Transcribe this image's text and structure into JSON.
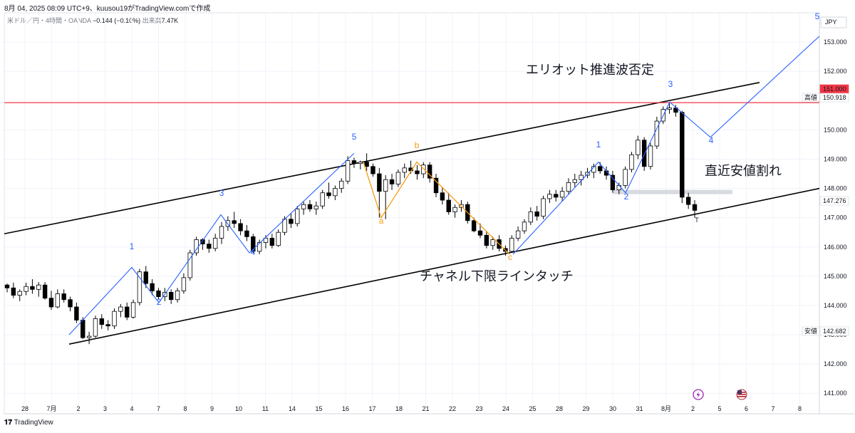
{
  "header": {
    "caption": "8月 04, 2025 08:09 UTC+9、kuusou19がTradingView.comで作成"
  },
  "symbol": {
    "name": "米ドル／円・4時間・OANDA",
    "change": "−0.144 (−0.10%)",
    "volume_label": "出来高",
    "volume": "7.47K"
  },
  "footer": {
    "brand": "TradingView"
  },
  "colors": {
    "up": "#ffffff",
    "down": "#000000",
    "wave_blue": "#2962ff",
    "wave_orange": "#f59b12",
    "resistance_line": "#f23645",
    "channel": "#000000"
  },
  "icons": [
    "tradingview-logo-icon",
    "lightning-icon",
    "us-flag-icon"
  ],
  "chart_data": {
    "type": "candlestick",
    "currency": "JPY",
    "x_ticks": [
      "28",
      "7月",
      "2",
      "3",
      "4",
      "7",
      "8",
      "9",
      "10",
      "11",
      "14",
      "15",
      "16",
      "17",
      "18",
      "21",
      "22",
      "23",
      "24",
      "25",
      "28",
      "29",
      "30",
      "31",
      "8月",
      "2",
      "5",
      "6",
      "7",
      "8"
    ],
    "y_ticks": [
      "141.000",
      "142.000",
      "143.000",
      "144.000",
      "145.000",
      "146.000",
      "147.000",
      "148.000",
      "149.000",
      "150.000",
      "152.000",
      "153.000"
    ],
    "ylim": [
      140.3,
      154.0
    ],
    "price_labels": [
      {
        "label": "",
        "value": "151.000",
        "color": "#f23645"
      },
      {
        "label": "高値",
        "value": "150.918",
        "color": "#131722"
      },
      {
        "label": "",
        "value": "147.276",
        "color": "#131722"
      },
      {
        "label": "安値",
        "value": "142.682",
        "color": "#131722"
      }
    ],
    "horizontal_line": 150.93,
    "channel_upper": [
      {
        "i": 0,
        "v": 146.45
      },
      {
        "i": 94,
        "v": 151.62
      }
    ],
    "channel_lower": [
      {
        "i": 5,
        "v": 142.68
      },
      {
        "i": 118,
        "v": 148.0
      }
    ],
    "support_zone": [
      147.82,
      147.95
    ],
    "candles": [
      [
        144.7,
        144.75,
        144.45,
        144.6
      ],
      [
        144.6,
        144.78,
        144.25,
        144.35
      ],
      [
        144.35,
        144.55,
        144.15,
        144.48
      ],
      [
        144.48,
        144.78,
        144.35,
        144.65
      ],
      [
        144.65,
        144.9,
        144.4,
        144.55
      ],
      [
        144.55,
        144.8,
        144.3,
        144.7
      ],
      [
        144.7,
        144.8,
        144.2,
        144.25
      ],
      [
        144.25,
        144.5,
        143.85,
        143.95
      ],
      [
        143.95,
        144.55,
        143.9,
        144.4
      ],
      [
        144.4,
        144.55,
        144.1,
        144.2
      ],
      [
        144.2,
        144.3,
        143.8,
        143.95
      ],
      [
        143.95,
        144.1,
        143.4,
        143.5
      ],
      [
        143.5,
        143.6,
        142.85,
        142.9
      ],
      [
        142.9,
        143.1,
        142.68,
        142.95
      ],
      [
        142.95,
        143.65,
        142.9,
        143.55
      ],
      [
        143.55,
        143.7,
        143.2,
        143.35
      ],
      [
        143.35,
        143.5,
        143.15,
        143.3
      ],
      [
        143.3,
        143.9,
        143.2,
        143.8
      ],
      [
        143.8,
        144.05,
        143.6,
        143.95
      ],
      [
        143.95,
        144.1,
        143.5,
        143.6
      ],
      [
        143.6,
        144.2,
        143.55,
        144.1
      ],
      [
        144.1,
        145.25,
        144.0,
        145.15
      ],
      [
        145.15,
        145.35,
        144.6,
        144.75
      ],
      [
        144.75,
        144.9,
        144.35,
        144.5
      ],
      [
        144.5,
        144.6,
        144.2,
        144.3
      ],
      [
        144.3,
        144.6,
        144.15,
        144.45
      ],
      [
        144.45,
        144.55,
        144.05,
        144.2
      ],
      [
        144.2,
        144.6,
        144.1,
        144.5
      ],
      [
        144.5,
        145.1,
        144.4,
        144.95
      ],
      [
        144.95,
        145.9,
        144.85,
        145.8
      ],
      [
        145.8,
        146.35,
        145.7,
        146.25
      ],
      [
        146.25,
        146.3,
        145.9,
        146.1
      ],
      [
        146.1,
        146.25,
        145.8,
        145.95
      ],
      [
        145.95,
        146.45,
        145.85,
        146.3
      ],
      [
        146.3,
        146.85,
        146.1,
        146.7
      ],
      [
        146.7,
        147.05,
        146.55,
        146.9
      ],
      [
        146.9,
        147.2,
        146.65,
        146.8
      ],
      [
        146.8,
        146.95,
        146.4,
        146.55
      ],
      [
        146.55,
        146.75,
        146.2,
        146.35
      ],
      [
        146.35,
        146.45,
        145.8,
        145.85
      ],
      [
        145.85,
        146.25,
        145.75,
        146.15
      ],
      [
        146.15,
        146.4,
        145.95,
        146.3
      ],
      [
        146.3,
        146.45,
        145.95,
        146.05
      ],
      [
        146.05,
        146.6,
        146.0,
        146.5
      ],
      [
        146.5,
        147.05,
        146.4,
        146.95
      ],
      [
        146.95,
        147.15,
        146.65,
        146.8
      ],
      [
        146.8,
        147.4,
        146.7,
        147.3
      ],
      [
        147.3,
        147.55,
        147.1,
        147.45
      ],
      [
        147.45,
        147.6,
        147.2,
        147.3
      ],
      [
        147.3,
        147.55,
        147.1,
        147.4
      ],
      [
        147.4,
        147.95,
        147.3,
        147.85
      ],
      [
        147.85,
        148.2,
        147.65,
        147.75
      ],
      [
        147.75,
        148.1,
        147.6,
        148.0
      ],
      [
        148.0,
        148.35,
        147.85,
        148.25
      ],
      [
        148.25,
        149.1,
        148.15,
        148.95
      ],
      [
        148.95,
        149.05,
        148.7,
        148.85
      ],
      [
        148.85,
        148.95,
        148.65,
        148.9
      ],
      [
        148.9,
        149.2,
        148.6,
        148.75
      ],
      [
        148.75,
        148.85,
        148.4,
        148.5
      ],
      [
        148.5,
        148.7,
        147.0,
        147.9
      ],
      [
        147.9,
        148.45,
        146.95,
        148.3
      ],
      [
        148.3,
        148.5,
        147.95,
        148.15
      ],
      [
        148.15,
        148.65,
        148.05,
        148.55
      ],
      [
        148.55,
        148.85,
        148.35,
        148.7
      ],
      [
        148.7,
        148.95,
        148.5,
        148.6
      ],
      [
        148.6,
        148.8,
        148.3,
        148.5
      ],
      [
        148.5,
        148.9,
        148.35,
        148.8
      ],
      [
        148.8,
        148.9,
        148.2,
        148.35
      ],
      [
        148.35,
        148.5,
        147.7,
        147.85
      ],
      [
        147.85,
        148.05,
        147.45,
        147.6
      ],
      [
        147.6,
        147.85,
        147.1,
        147.2
      ],
      [
        147.2,
        147.45,
        147.0,
        147.35
      ],
      [
        147.35,
        147.6,
        147.2,
        147.45
      ],
      [
        147.45,
        147.55,
        146.8,
        146.9
      ],
      [
        146.9,
        147.0,
        146.5,
        146.55
      ],
      [
        146.55,
        146.8,
        146.3,
        146.4
      ],
      [
        146.4,
        146.55,
        145.95,
        146.05
      ],
      [
        146.05,
        146.35,
        145.9,
        146.25
      ],
      [
        146.25,
        146.4,
        145.85,
        145.95
      ],
      [
        145.95,
        146.05,
        145.7,
        145.85
      ],
      [
        145.85,
        146.4,
        145.8,
        146.3
      ],
      [
        146.3,
        146.7,
        146.2,
        146.55
      ],
      [
        146.55,
        146.95,
        146.45,
        146.85
      ],
      [
        146.85,
        147.35,
        146.75,
        147.2
      ],
      [
        147.2,
        147.4,
        146.9,
        147.05
      ],
      [
        147.05,
        147.75,
        146.95,
        147.65
      ],
      [
        147.65,
        147.95,
        147.5,
        147.8
      ],
      [
        147.8,
        147.95,
        147.55,
        147.7
      ],
      [
        147.7,
        148.05,
        147.55,
        147.9
      ],
      [
        147.9,
        148.35,
        147.8,
        148.2
      ],
      [
        148.2,
        148.5,
        148.05,
        148.3
      ],
      [
        148.3,
        148.6,
        148.1,
        148.45
      ],
      [
        148.45,
        148.7,
        148.35,
        148.55
      ],
      [
        148.55,
        148.85,
        148.35,
        148.75
      ],
      [
        148.75,
        148.9,
        148.5,
        148.6
      ],
      [
        148.6,
        148.75,
        148.3,
        148.45
      ],
      [
        148.45,
        148.6,
        147.85,
        147.95
      ],
      [
        147.95,
        148.2,
        147.8,
        148.1
      ],
      [
        148.1,
        148.75,
        148.0,
        148.65
      ],
      [
        148.65,
        149.25,
        148.55,
        149.15
      ],
      [
        149.15,
        149.8,
        149.0,
        149.65
      ],
      [
        149.65,
        149.75,
        148.6,
        148.75
      ],
      [
        148.75,
        149.55,
        148.65,
        149.45
      ],
      [
        149.45,
        150.45,
        149.35,
        150.3
      ],
      [
        150.3,
        150.8,
        150.2,
        150.7
      ],
      [
        150.7,
        150.92,
        150.55,
        150.75
      ],
      [
        150.75,
        150.85,
        150.45,
        150.6
      ],
      [
        150.6,
        150.65,
        147.5,
        147.7
      ],
      [
        147.7,
        147.85,
        147.3,
        147.45
      ],
      [
        147.45,
        147.6,
        147.0,
        147.25
      ]
    ],
    "candle_x": [
      8,
      14,
      20,
      26,
      32,
      38,
      44,
      50,
      56,
      62,
      68,
      74,
      80,
      86,
      92,
      98,
      104,
      110,
      116,
      122,
      128,
      134,
      140,
      146,
      152,
      158,
      164,
      170,
      176,
      182,
      188,
      194,
      200,
      206,
      212,
      218,
      224,
      230,
      236,
      242,
      248,
      254,
      260,
      266,
      272,
      278,
      284,
      290,
      296,
      302,
      308,
      314,
      320,
      326,
      332,
      338,
      344,
      350,
      356,
      362,
      368,
      374,
      380,
      386,
      392,
      398,
      404,
      410,
      416,
      422,
      428,
      434,
      440,
      446,
      452,
      458,
      464,
      470,
      476,
      482,
      488,
      494,
      500,
      506,
      512,
      518,
      524,
      530,
      536,
      542,
      548,
      554,
      560,
      566,
      572,
      578,
      584,
      590,
      596,
      602,
      608,
      614,
      620,
      626,
      632,
      638,
      644,
      650,
      656,
      662
    ],
    "wave_labels": [
      {
        "text": "1",
        "color": "blue"
      },
      {
        "text": "2",
        "color": "blue"
      },
      {
        "text": "3",
        "color": "blue"
      },
      {
        "text": "4",
        "color": "blue"
      },
      {
        "text": "5",
        "color": "blue"
      },
      {
        "text": "a",
        "color": "orange"
      },
      {
        "text": "b",
        "color": "orange"
      },
      {
        "text": "c",
        "color": "orange"
      },
      {
        "text": "1",
        "color": "blue"
      },
      {
        "text": "2",
        "color": "blue"
      },
      {
        "text": "3",
        "color": "blue"
      },
      {
        "text": "4",
        "color": "blue"
      },
      {
        "text": "5",
        "color": "blue"
      }
    ],
    "annotations": [
      "エリオット推進波否定",
      "直近安値割れ",
      "チャネル下限ラインタッチ"
    ]
  }
}
